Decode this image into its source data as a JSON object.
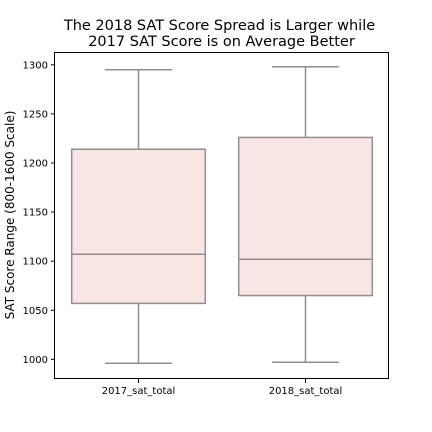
{
  "chart_data": {
    "type": "box",
    "title": "The 2018 SAT Score Spread is Larger while\n2017 SAT Score is on Average Better",
    "xlabel": "",
    "ylabel": "SAT Score Range (800-1600 Scale)",
    "ylim": [
      980,
      1312
    ],
    "yticks": [
      1000,
      1050,
      1100,
      1150,
      1200,
      1250,
      1300
    ],
    "categories": [
      "2017_sat_total",
      "2018_sat_total"
    ],
    "boxes": [
      {
        "name": "2017_sat_total",
        "whislo": 996,
        "q1": 1057,
        "median": 1107,
        "q3": 1214,
        "whishi": 1295
      },
      {
        "name": "2018_sat_total",
        "whislo": 997,
        "q1": 1065,
        "median": 1102,
        "q3": 1226,
        "whishi": 1298
      }
    ],
    "grid": false,
    "colors": {
      "box_fill": "#fae5e5",
      "box_edge": "#8f8f8f",
      "frame": "#000000"
    }
  }
}
